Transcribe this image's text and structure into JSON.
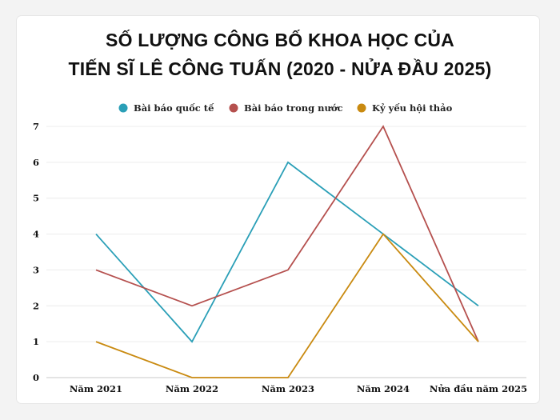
{
  "chart_data": {
    "type": "line",
    "title_lines": [
      "SỐ LƯỢNG CÔNG BỐ KHOA HỌC CỦA",
      "TIẾN SĨ LÊ CÔNG TUẤN (2020 - NỬA ĐẦU 2025)"
    ],
    "categories": [
      "Năm 2021",
      "Năm 2022",
      "Năm 2023",
      "Năm 2024",
      "Nửa đầu năm 2025"
    ],
    "series": [
      {
        "name": "Bài báo quốc tế",
        "color": "#2a9fb7",
        "values": [
          4,
          1,
          6,
          4,
          2
        ]
      },
      {
        "name": "Bài báo trong nước",
        "color": "#b5504e",
        "values": [
          3,
          2,
          3,
          7,
          1
        ]
      },
      {
        "name": "Kỷ yếu hội thảo",
        "color": "#c98a10",
        "values": [
          1,
          0,
          0,
          4,
          1
        ]
      }
    ],
    "ylim": [
      0,
      7
    ],
    "yticks": [
      0,
      1,
      2,
      3,
      4,
      5,
      6,
      7
    ],
    "grid": true,
    "legend": "top"
  }
}
